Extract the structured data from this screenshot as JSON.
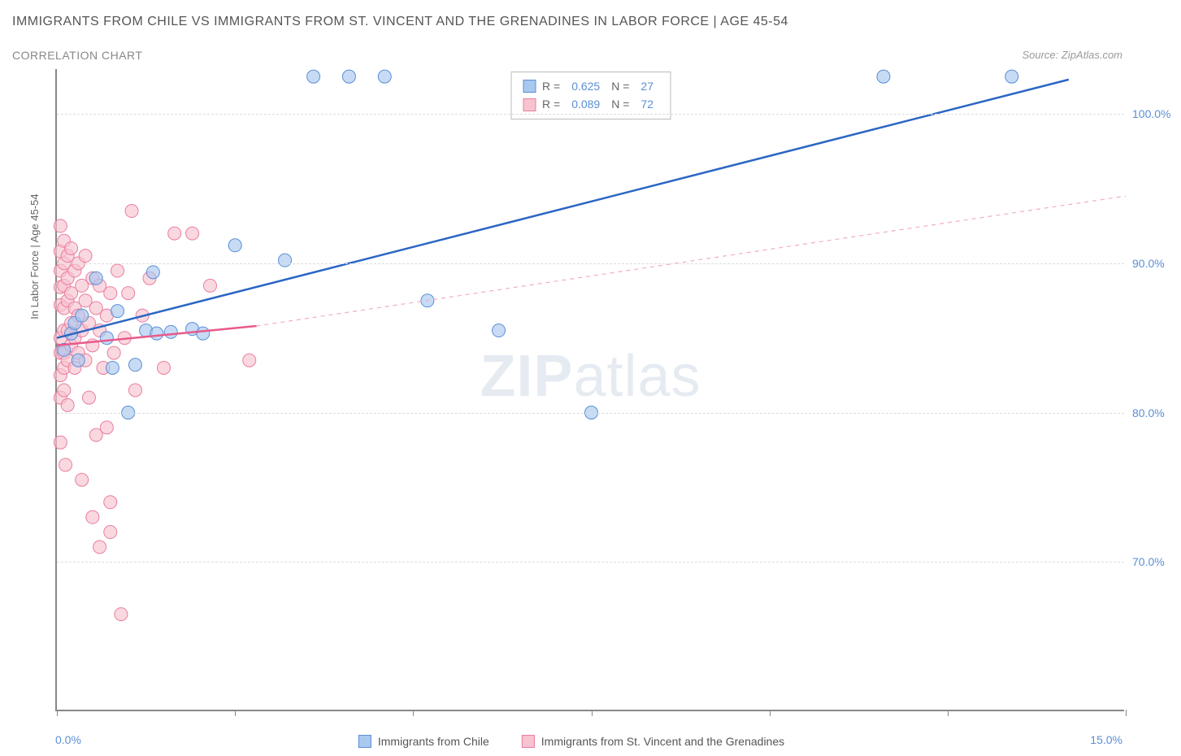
{
  "title": "IMMIGRANTS FROM CHILE VS IMMIGRANTS FROM ST. VINCENT AND THE GRENADINES IN LABOR FORCE | AGE 45-54",
  "subtitle": "CORRELATION CHART",
  "source": "Source: ZipAtlas.com",
  "watermark_a": "ZIP",
  "watermark_b": "atlas",
  "chart": {
    "type": "scatter",
    "x_axis": {
      "min": 0.0,
      "max": 15.0,
      "label_min": "0.0%",
      "label_max": "15.0%",
      "tick_positions": [
        0,
        2.5,
        5.0,
        7.5,
        10.0,
        12.5,
        15.0
      ]
    },
    "y_axis": {
      "min": 60.0,
      "max": 103.0,
      "title": "In Labor Force | Age 45-54",
      "gridlines": [
        70.0,
        80.0,
        90.0,
        100.0
      ],
      "tick_labels": [
        "70.0%",
        "80.0%",
        "90.0%",
        "100.0%"
      ]
    },
    "series": [
      {
        "name": "Immigrants from Chile",
        "color_fill": "#a9c8ef",
        "color_stroke": "#5b8fd6",
        "marker_r": 8,
        "r_value": "0.625",
        "n_value": "27",
        "trend": {
          "x1": 0.0,
          "y1": 85.0,
          "x2": 14.2,
          "y2": 102.3,
          "stroke": "#2b66c4",
          "width": 2.5,
          "dash": ""
        },
        "points": [
          [
            0.1,
            84.2
          ],
          [
            0.2,
            85.3
          ],
          [
            0.25,
            86.0
          ],
          [
            0.3,
            83.5
          ],
          [
            0.35,
            86.5
          ],
          [
            0.55,
            89.0
          ],
          [
            0.7,
            85.0
          ],
          [
            0.78,
            83.0
          ],
          [
            0.85,
            86.8
          ],
          [
            1.0,
            80.0
          ],
          [
            1.1,
            83.2
          ],
          [
            1.25,
            85.5
          ],
          [
            1.35,
            89.4
          ],
          [
            1.4,
            85.3
          ],
          [
            1.6,
            85.4
          ],
          [
            1.9,
            85.6
          ],
          [
            2.05,
            85.3
          ],
          [
            2.5,
            91.2
          ],
          [
            3.2,
            90.2
          ],
          [
            3.6,
            102.5
          ],
          [
            4.1,
            102.5
          ],
          [
            4.6,
            102.5
          ],
          [
            5.2,
            87.5
          ],
          [
            6.2,
            85.5
          ],
          [
            7.5,
            80.0
          ],
          [
            11.6,
            102.5
          ],
          [
            13.4,
            102.5
          ]
        ]
      },
      {
        "name": "Immigrants from St. Vincent and the Grenadines",
        "color_fill": "#f7c3cf",
        "color_stroke": "#e97ea0",
        "marker_r": 8,
        "r_value": "0.089",
        "n_value": "72",
        "trend": {
          "x1": 0.0,
          "y1": 84.5,
          "x2": 2.8,
          "y2": 85.8,
          "stroke": "#e85a8a",
          "width": 2.5,
          "dash": ""
        },
        "trend_ext": {
          "x1": 2.8,
          "y1": 85.8,
          "x2": 15.0,
          "y2": 94.5,
          "stroke": "#f0aebf",
          "width": 1.2,
          "dash": "5,5"
        },
        "points": [
          [
            0.05,
            92.5
          ],
          [
            0.05,
            90.8
          ],
          [
            0.05,
            89.5
          ],
          [
            0.05,
            88.4
          ],
          [
            0.05,
            87.2
          ],
          [
            0.05,
            85.0
          ],
          [
            0.05,
            84.0
          ],
          [
            0.05,
            82.5
          ],
          [
            0.05,
            81.0
          ],
          [
            0.05,
            78.0
          ],
          [
            0.1,
            91.5
          ],
          [
            0.1,
            90.0
          ],
          [
            0.1,
            88.5
          ],
          [
            0.1,
            87.0
          ],
          [
            0.1,
            85.5
          ],
          [
            0.1,
            84.0
          ],
          [
            0.1,
            83.0
          ],
          [
            0.1,
            81.5
          ],
          [
            0.12,
            76.5
          ],
          [
            0.15,
            90.5
          ],
          [
            0.15,
            89.0
          ],
          [
            0.15,
            87.5
          ],
          [
            0.15,
            85.5
          ],
          [
            0.15,
            83.5
          ],
          [
            0.15,
            80.5
          ],
          [
            0.2,
            91.0
          ],
          [
            0.2,
            88.0
          ],
          [
            0.2,
            86.0
          ],
          [
            0.2,
            84.5
          ],
          [
            0.25,
            89.5
          ],
          [
            0.25,
            87.0
          ],
          [
            0.25,
            85.0
          ],
          [
            0.25,
            83.0
          ],
          [
            0.3,
            90.0
          ],
          [
            0.3,
            86.5
          ],
          [
            0.3,
            84.0
          ],
          [
            0.35,
            88.5
          ],
          [
            0.35,
            85.5
          ],
          [
            0.35,
            75.5
          ],
          [
            0.4,
            90.5
          ],
          [
            0.4,
            87.5
          ],
          [
            0.4,
            83.5
          ],
          [
            0.45,
            81.0
          ],
          [
            0.45,
            86.0
          ],
          [
            0.5,
            89.0
          ],
          [
            0.5,
            84.5
          ],
          [
            0.5,
            73.0
          ],
          [
            0.55,
            87.0
          ],
          [
            0.55,
            78.5
          ],
          [
            0.6,
            88.5
          ],
          [
            0.6,
            85.5
          ],
          [
            0.6,
            71.0
          ],
          [
            0.65,
            83.0
          ],
          [
            0.7,
            79.0
          ],
          [
            0.7,
            86.5
          ],
          [
            0.75,
            88.0
          ],
          [
            0.75,
            74.0
          ],
          [
            0.75,
            72.0
          ],
          [
            0.8,
            84.0
          ],
          [
            0.85,
            89.5
          ],
          [
            0.9,
            66.5
          ],
          [
            0.95,
            85.0
          ],
          [
            1.0,
            88.0
          ],
          [
            1.05,
            93.5
          ],
          [
            1.1,
            81.5
          ],
          [
            1.2,
            86.5
          ],
          [
            1.3,
            89.0
          ],
          [
            1.5,
            83.0
          ],
          [
            1.65,
            92.0
          ],
          [
            1.9,
            92.0
          ],
          [
            2.15,
            88.5
          ],
          [
            2.7,
            83.5
          ]
        ]
      }
    ],
    "legend_box": {
      "r_label": "R =",
      "n_label": "N ="
    },
    "colors": {
      "title": "#555555",
      "subtitle": "#888888",
      "axis": "#888888",
      "grid": "#dddddd",
      "tick_label": "#5b8fd6",
      "background": "#ffffff"
    }
  }
}
